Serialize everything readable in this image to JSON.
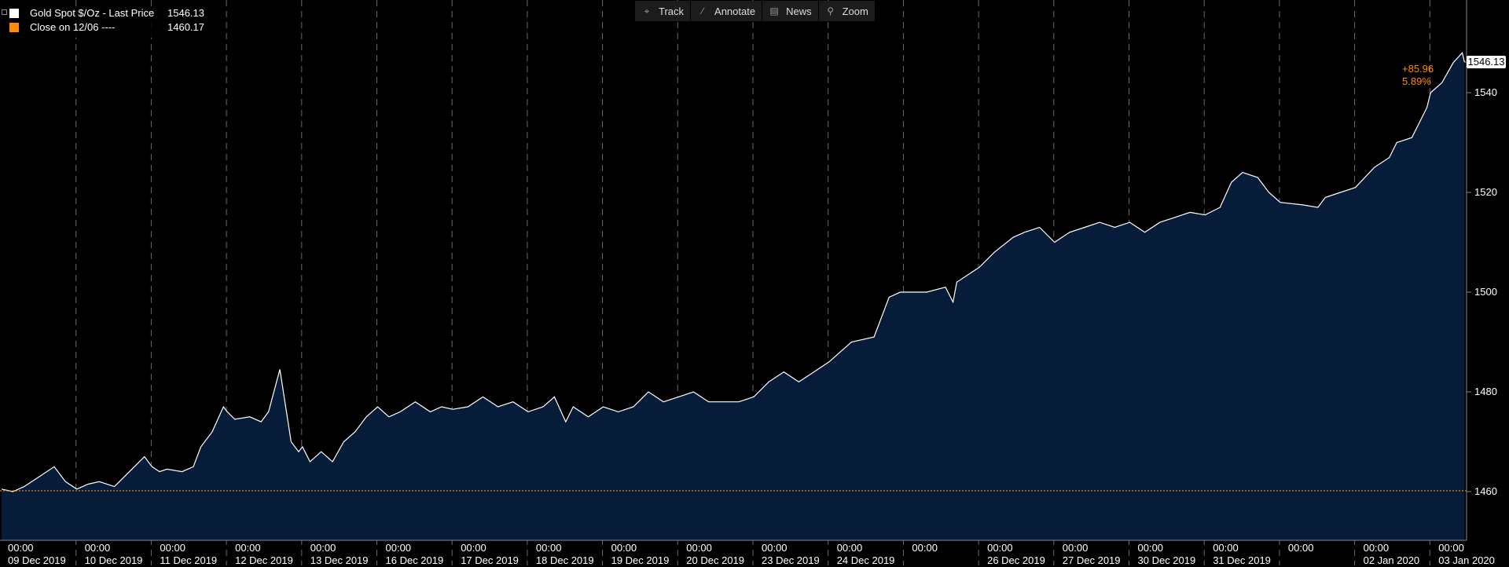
{
  "toolbar": {
    "track": "Track",
    "annotate": "Annotate",
    "news": "News",
    "zoom": "Zoom",
    "icons": [
      "crosshair-icon",
      "pencil-icon",
      "news-icon",
      "magnifier-icon"
    ]
  },
  "legend": {
    "series1_name": "Gold Spot $/Oz - Last Price",
    "series1_value": "1546.13",
    "series1_color": "#ffffff",
    "series2_name": "Close on 12/06 ----",
    "series2_value": "1460.17",
    "series2_color": "#ff8c00"
  },
  "last_price_label": "1546.13",
  "change": {
    "abs": "+85.96",
    "pct": "5.89%"
  },
  "colors": {
    "area": "#061c38",
    "line": "#ffffff",
    "ref": "#ff8c00",
    "grid": "#6a6a6a"
  },
  "chart_data": {
    "type": "area",
    "title": "",
    "ylim": [
      1450,
      1555
    ],
    "yticks": [
      1460,
      1480,
      1500,
      1520,
      1540
    ],
    "reference_line": {
      "label": "Close on 12/06",
      "value": 1460.17
    },
    "x_tick_labels": [
      {
        "time": "00:00",
        "date": "09 Dec 2019"
      },
      {
        "time": "00:00",
        "date": "10 Dec 2019"
      },
      {
        "time": "00:00",
        "date": "11 Dec 2019"
      },
      {
        "time": "00:00",
        "date": "12 Dec 2019"
      },
      {
        "time": "00:00",
        "date": "13 Dec 2019"
      },
      {
        "time": "00:00",
        "date": "16 Dec 2019"
      },
      {
        "time": "00:00",
        "date": "17 Dec 2019"
      },
      {
        "time": "00:00",
        "date": "18 Dec 2019"
      },
      {
        "time": "00:00",
        "date": "19 Dec 2019"
      },
      {
        "time": "00:00",
        "date": "20 Dec 2019"
      },
      {
        "time": "00:00",
        "date": "23 Dec 2019"
      },
      {
        "time": "00:00",
        "date": "24 Dec 2019"
      },
      {
        "time": "00:00",
        "date": ""
      },
      {
        "time": "00:00",
        "date": "26 Dec 2019"
      },
      {
        "time": "00:00",
        "date": "27 Dec 2019"
      },
      {
        "time": "00:00",
        "date": "30 Dec 2019"
      },
      {
        "time": "00:00",
        "date": "31 Dec 2019"
      },
      {
        "time": "00:00",
        "date": ""
      },
      {
        "time": "00:00",
        "date": "02 Jan 2020"
      },
      {
        "time": "00:00",
        "date": "03 Jan 2020"
      }
    ],
    "series": [
      {
        "name": "Gold Spot $/Oz - Last Price",
        "x": [
          0,
          0.15,
          0.3,
          0.5,
          0.7,
          0.85,
          1,
          1.15,
          1.3,
          1.5,
          1.7,
          1.9,
          2,
          2.1,
          2.2,
          2.4,
          2.55,
          2.65,
          2.8,
          2.95,
          3,
          3.1,
          3.3,
          3.45,
          3.55,
          3.7,
          3.85,
          3.95,
          4,
          4.1,
          4.25,
          4.4,
          4.55,
          4.7,
          4.85,
          5,
          5.15,
          5.3,
          5.5,
          5.7,
          5.85,
          6,
          6.2,
          6.4,
          6.6,
          6.8,
          7,
          7.2,
          7.35,
          7.5,
          7.6,
          7.8,
          8,
          8.2,
          8.4,
          8.6,
          8.8,
          9,
          9.2,
          9.4,
          9.6,
          9.8,
          10,
          10.2,
          10.4,
          10.6,
          10.8,
          11,
          11.3,
          11.6,
          11.8,
          11.95,
          12,
          12.3,
          12.55,
          12.65,
          12.7,
          13,
          13.2,
          13.45,
          13.6,
          13.8,
          14,
          14.2,
          14.4,
          14.6,
          14.8,
          15,
          15.2,
          15.4,
          15.6,
          15.8,
          16,
          16.2,
          16.35,
          16.5,
          16.7,
          16.85,
          17,
          17.3,
          17.5,
          17.6,
          17.8,
          18,
          18.25,
          18.45,
          18.55,
          18.75,
          18.95,
          19,
          19.15,
          19.3,
          19.42,
          19.45
        ],
        "values": [
          1460.5,
          1460,
          1461,
          1463,
          1465,
          1462,
          1460.5,
          1461.5,
          1462,
          1461,
          1464,
          1467,
          1465,
          1464,
          1464.5,
          1464,
          1465,
          1469,
          1472,
          1477,
          1476,
          1474.5,
          1475,
          1474,
          1476,
          1484.5,
          1470,
          1468,
          1469,
          1466,
          1468,
          1466,
          1470,
          1472,
          1475,
          1477,
          1475,
          1476,
          1478,
          1476,
          1477,
          1476.5,
          1477,
          1479,
          1477,
          1478,
          1476,
          1477,
          1479,
          1474,
          1477,
          1475,
          1477,
          1476,
          1477,
          1480,
          1478,
          1479,
          1480,
          1478,
          1478,
          1478,
          1479,
          1482,
          1484,
          1482,
          1484,
          1486,
          1490,
          1491,
          1499,
          1500,
          1500,
          1500,
          1501,
          1498,
          1502,
          1505,
          1508,
          1511,
          1512,
          1513,
          1510,
          1512,
          1513,
          1514,
          1513,
          1514,
          1512,
          1514,
          1515,
          1516,
          1515.5,
          1517,
          1522,
          1524,
          1523,
          1520,
          1518,
          1517.5,
          1517,
          1519,
          1520,
          1521,
          1525,
          1527,
          1530,
          1531,
          1537,
          1540,
          1542,
          1546,
          1548,
          1546.13
        ]
      }
    ]
  }
}
